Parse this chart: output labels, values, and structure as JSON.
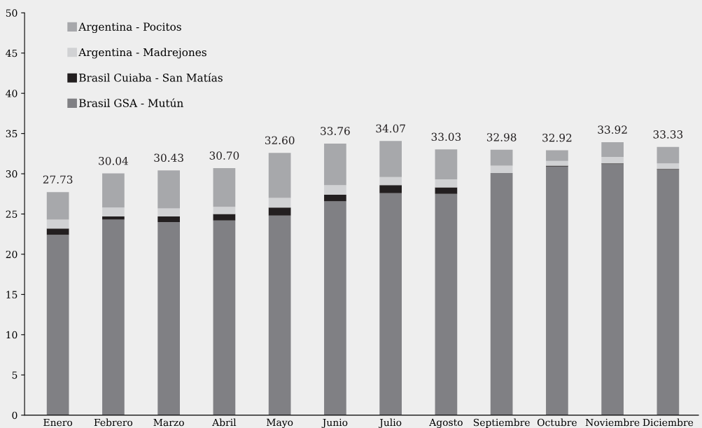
{
  "chart_data": {
    "type": "bar",
    "stacked": true,
    "categories": [
      "Enero",
      "Febrero",
      "Marzo",
      "Abril",
      "Mayo",
      "Junio",
      "Julio",
      "Agosto",
      "Septiembre",
      "Octubre",
      "Noviembre",
      "Diciembre"
    ],
    "series": [
      {
        "name": "Brasil GSA - Mutún",
        "color": "#808084",
        "values": [
          22.4,
          24.3,
          24.0,
          24.2,
          24.8,
          26.6,
          27.6,
          27.5,
          30.1,
          30.9,
          31.2,
          30.5
        ]
      },
      {
        "name": "Brasil Cuiaba - San Matías",
        "color": "#231f20",
        "values": [
          0.8,
          0.4,
          0.7,
          0.8,
          1.0,
          0.8,
          1.0,
          0.8,
          0,
          0.1,
          0.1,
          0.1
        ]
      },
      {
        "name": "Argentina - Madrejones",
        "color": "#d1d2d4",
        "values": [
          1.1,
          1.1,
          1.0,
          0.9,
          1.2,
          1.2,
          1.0,
          1.0,
          0.9,
          0.6,
          0.8,
          0.7
        ]
      },
      {
        "name": "Argentina - Pocitos",
        "color": "#a7a8ab",
        "values": [
          3.43,
          4.24,
          4.73,
          4.8,
          5.6,
          5.16,
          4.47,
          3.73,
          1.98,
          1.32,
          1.82,
          2.03
        ]
      }
    ],
    "totals": [
      "27.73",
      "30.04",
      "30.43",
      "30.70",
      "32.60",
      "33.76",
      "34.07",
      "33.03",
      "32.98",
      "32.92",
      "33.92",
      "33.33"
    ],
    "ylim": [
      0,
      50
    ],
    "yticks": [
      0,
      5,
      10,
      15,
      20,
      25,
      30,
      35,
      40,
      45,
      50
    ],
    "grid": false,
    "legend": "top left"
  }
}
